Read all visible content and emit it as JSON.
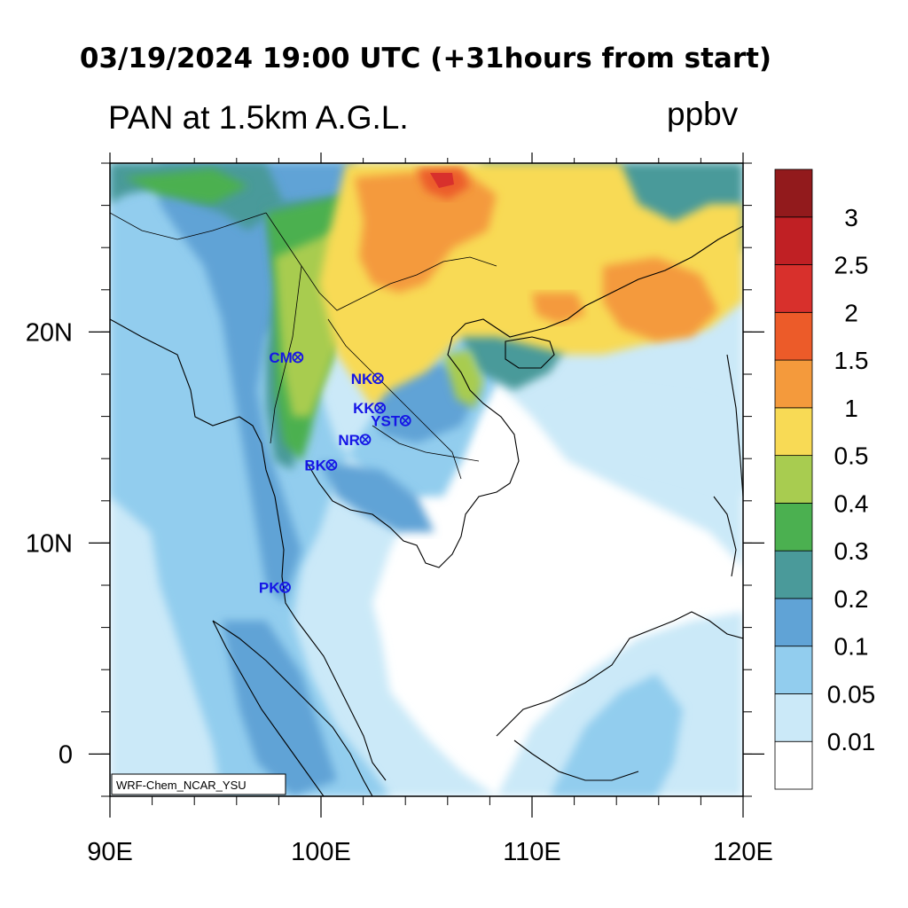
{
  "header": {
    "title": "03/19/2024 19:00 UTC (+31hours from start)",
    "left_title": "PAN at 1.5km A.G.L.",
    "units": "ppbv"
  },
  "map": {
    "lon_range": [
      90,
      120
    ],
    "lat_range": [
      -2,
      28
    ],
    "x_ticks": [
      {
        "lon": 90,
        "label": "90E"
      },
      {
        "lon": 100,
        "label": "100E"
      },
      {
        "lon": 110,
        "label": "110E"
      },
      {
        "lon": 120,
        "label": "120E"
      }
    ],
    "y_ticks": [
      {
        "lat": 0,
        "label": "0"
      },
      {
        "lat": 10,
        "label": "10N"
      },
      {
        "lat": 20,
        "label": "20N"
      }
    ],
    "credit": "WRF-Chem_NCAR_YSU"
  },
  "sites": [
    {
      "code": "CM",
      "lon": 98.9,
      "lat": 18.8
    },
    {
      "code": "NK",
      "lon": 102.7,
      "lat": 17.8
    },
    {
      "code": "KK",
      "lon": 102.8,
      "lat": 16.4
    },
    {
      "code": "YST",
      "lon": 104.0,
      "lat": 15.8
    },
    {
      "code": "NR",
      "lon": 102.1,
      "lat": 14.9
    },
    {
      "code": "BK",
      "lon": 100.5,
      "lat": 13.7
    },
    {
      "code": "PK",
      "lon": 98.3,
      "lat": 7.9
    }
  ],
  "colorbar": {
    "levels": [
      "0.01",
      "0.05",
      "0.1",
      "0.2",
      "0.3",
      "0.4",
      "0.5",
      "1",
      "1.5",
      "2",
      "2.5",
      "3"
    ],
    "colors": [
      "#ffffff",
      "#cbe9f8",
      "#92cdee",
      "#60a3d6",
      "#4a9a9a",
      "#4bb050",
      "#a8cc50",
      "#f8da55",
      "#f49a3c",
      "#ec5b29",
      "#d8302c",
      "#c02024",
      "#921a1c"
    ]
  }
}
